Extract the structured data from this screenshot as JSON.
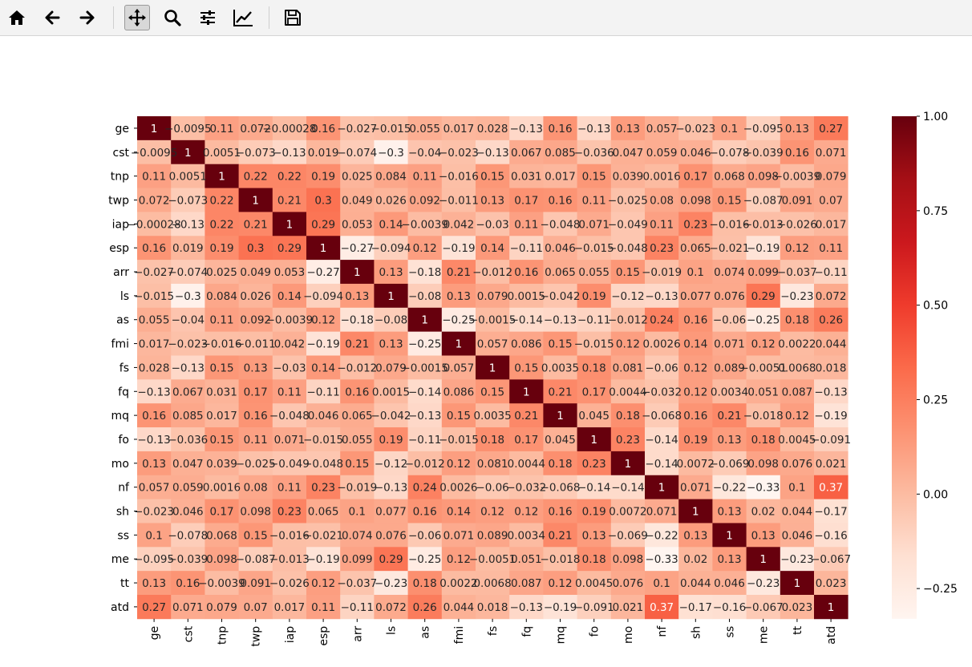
{
  "toolbar": {
    "buttons": [
      {
        "name": "home",
        "icon": "home-icon"
      },
      {
        "name": "back",
        "icon": "arrow-left-icon"
      },
      {
        "name": "forward",
        "icon": "arrow-right-icon"
      },
      {
        "name": "pan",
        "icon": "move-icon",
        "active": true
      },
      {
        "name": "zoom",
        "icon": "magnifier-icon"
      },
      {
        "name": "configure-subplots",
        "icon": "sliders-icon"
      },
      {
        "name": "edit-axis",
        "icon": "line-chart-icon"
      },
      {
        "name": "save",
        "icon": "floppy-disk-icon"
      }
    ]
  },
  "chart_data": {
    "type": "heatmap",
    "colormap": "Reds",
    "vmin": -0.33,
    "vmax": 1.0,
    "colorbar_ticks": [
      "1.00",
      "0.75",
      "0.50",
      "0.25",
      "0.00",
      "−0.25"
    ],
    "colorbar_tick_values": [
      1.0,
      0.75,
      0.5,
      0.25,
      0.0,
      -0.25
    ],
    "labels": [
      "ge",
      "cst",
      "tnp",
      "twp",
      "iap",
      "esp",
      "arr",
      "ls",
      "as",
      "fmi",
      "fs",
      "fq",
      "mq",
      "fo",
      "mo",
      "nf",
      "sh",
      "ss",
      "me",
      "tt",
      "atd"
    ],
    "values": [
      [
        1,
        -0.0095,
        0.11,
        0.072,
        -0.00028,
        0.16,
        -0.027,
        -0.015,
        0.055,
        0.017,
        0.028,
        -0.13,
        0.16,
        -0.13,
        0.13,
        0.057,
        -0.023,
        0.1,
        -0.095,
        0.13,
        0.27
      ],
      [
        -0.0095,
        1,
        0.0051,
        -0.073,
        -0.13,
        0.019,
        -0.074,
        -0.3,
        -0.04,
        -0.023,
        -0.13,
        0.067,
        0.085,
        -0.036,
        0.047,
        0.059,
        0.046,
        -0.078,
        -0.039,
        0.16,
        0.071
      ],
      [
        0.11,
        0.0051,
        1,
        0.22,
        0.22,
        0.19,
        0.025,
        0.084,
        0.11,
        -0.016,
        0.15,
        0.031,
        0.017,
        0.15,
        0.039,
        0.0016,
        0.17,
        0.068,
        0.098,
        -0.0039,
        0.079
      ],
      [
        0.072,
        -0.073,
        0.22,
        1,
        0.21,
        0.3,
        0.049,
        0.026,
        0.092,
        -0.011,
        0.13,
        0.17,
        0.16,
        0.11,
        -0.025,
        0.08,
        0.098,
        0.15,
        -0.087,
        0.091,
        0.07
      ],
      [
        -0.00028,
        -0.13,
        0.22,
        0.21,
        1,
        0.29,
        0.053,
        0.14,
        -0.0039,
        0.042,
        -0.03,
        0.11,
        -0.048,
        0.071,
        -0.049,
        0.11,
        0.23,
        -0.016,
        -0.013,
        -0.026,
        0.017
      ],
      [
        0.16,
        0.019,
        0.19,
        0.3,
        0.29,
        1,
        -0.27,
        -0.094,
        0.12,
        -0.19,
        0.14,
        -0.11,
        0.046,
        -0.015,
        -0.048,
        0.23,
        0.065,
        -0.021,
        -0.19,
        0.12,
        0.11
      ],
      [
        -0.027,
        -0.074,
        0.025,
        0.049,
        0.053,
        -0.27,
        1,
        0.13,
        -0.18,
        0.21,
        -0.012,
        0.16,
        0.065,
        0.055,
        0.15,
        -0.019,
        0.1,
        0.074,
        0.099,
        -0.037,
        -0.11
      ],
      [
        -0.015,
        -0.3,
        0.084,
        0.026,
        0.14,
        -0.094,
        0.13,
        1,
        -0.08,
        0.13,
        0.079,
        0.0015,
        -0.042,
        0.19,
        -0.12,
        -0.13,
        0.077,
        0.076,
        0.29,
        -0.23,
        0.072
      ],
      [
        0.055,
        -0.04,
        0.11,
        0.092,
        -0.0039,
        0.12,
        -0.18,
        -0.08,
        1,
        -0.25,
        -0.0015,
        -0.14,
        -0.13,
        -0.11,
        -0.012,
        0.24,
        0.16,
        -0.06,
        -0.25,
        0.18,
        0.26
      ],
      [
        0.017,
        -0.023,
        -0.016,
        -0.011,
        0.042,
        -0.19,
        0.21,
        0.13,
        -0.25,
        1,
        0.057,
        0.086,
        0.15,
        -0.015,
        0.12,
        0.0026,
        0.14,
        0.071,
        0.12,
        0.0022,
        0.044
      ],
      [
        0.028,
        -0.13,
        0.15,
        0.13,
        -0.03,
        0.14,
        -0.012,
        0.079,
        -0.0015,
        0.057,
        1,
        0.15,
        0.0035,
        0.18,
        0.081,
        -0.06,
        0.12,
        0.089,
        -0.0051,
        0.0068,
        0.018
      ],
      [
        -0.13,
        0.067,
        0.031,
        0.17,
        0.11,
        -0.11,
        0.16,
        0.0015,
        -0.14,
        0.086,
        0.15,
        1,
        0.21,
        0.17,
        0.0044,
        -0.032,
        0.12,
        0.0034,
        0.051,
        0.087,
        -0.13
      ],
      [
        0.16,
        0.085,
        0.017,
        0.16,
        -0.048,
        0.046,
        0.065,
        -0.042,
        -0.13,
        0.15,
        0.0035,
        0.21,
        1,
        0.045,
        0.18,
        -0.068,
        0.16,
        0.21,
        -0.018,
        0.12,
        -0.19
      ],
      [
        -0.13,
        -0.036,
        0.15,
        0.11,
        0.071,
        -0.015,
        0.055,
        0.19,
        -0.11,
        -0.015,
        0.18,
        0.17,
        0.045,
        1,
        0.23,
        -0.14,
        0.19,
        0.13,
        0.18,
        0.0045,
        -0.091
      ],
      [
        0.13,
        0.047,
        0.039,
        -0.025,
        -0.049,
        -0.048,
        0.15,
        -0.12,
        -0.012,
        0.12,
        0.081,
        0.0044,
        0.18,
        0.23,
        1,
        -0.14,
        0.0072,
        -0.069,
        0.098,
        0.076,
        0.021
      ],
      [
        0.057,
        0.059,
        0.0016,
        0.08,
        0.11,
        0.23,
        -0.019,
        -0.13,
        0.24,
        0.0026,
        -0.06,
        -0.032,
        -0.068,
        -0.14,
        -0.14,
        1,
        0.071,
        -0.22,
        -0.33,
        0.1,
        0.37
      ],
      [
        -0.023,
        0.046,
        0.17,
        0.098,
        0.23,
        0.065,
        0.1,
        0.077,
        0.16,
        0.14,
        0.12,
        0.12,
        0.16,
        0.19,
        0.0072,
        0.071,
        1,
        0.13,
        0.02,
        0.044,
        -0.17
      ],
      [
        0.1,
        -0.078,
        0.068,
        0.15,
        -0.016,
        -0.021,
        0.074,
        0.076,
        -0.06,
        0.071,
        0.089,
        0.0034,
        0.21,
        0.13,
        -0.069,
        -0.22,
        0.13,
        1,
        0.13,
        0.046,
        -0.16
      ],
      [
        -0.095,
        -0.039,
        0.098,
        -0.087,
        -0.013,
        -0.19,
        0.099,
        0.29,
        -0.25,
        0.12,
        -0.0051,
        0.051,
        -0.018,
        0.18,
        0.098,
        -0.33,
        0.02,
        0.13,
        1,
        -0.23,
        -0.067
      ],
      [
        0.13,
        0.16,
        -0.0039,
        0.091,
        -0.026,
        0.12,
        -0.037,
        -0.23,
        0.18,
        0.0022,
        0.0068,
        0.087,
        0.12,
        0.0045,
        0.076,
        0.1,
        0.044,
        0.046,
        -0.23,
        1,
        0.023
      ],
      [
        0.27,
        0.071,
        0.079,
        0.07,
        0.017,
        0.11,
        -0.11,
        0.072,
        0.26,
        0.044,
        0.018,
        -0.13,
        -0.19,
        -0.091,
        0.021,
        0.37,
        -0.17,
        -0.16,
        -0.067,
        0.023,
        1
      ]
    ]
  }
}
